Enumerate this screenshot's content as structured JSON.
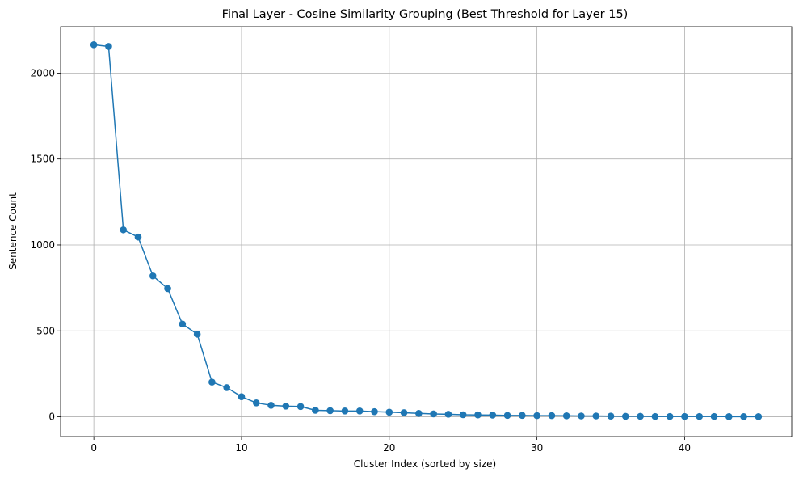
{
  "chart_data": {
    "type": "line",
    "title": "Final Layer - Cosine Similarity Grouping (Best Threshold for Layer 15)",
    "xlabel": "Cluster Index (sorted by size)",
    "ylabel": "Sentence Count",
    "xlim": [
      -2.25,
      47.25
    ],
    "ylim": [
      -115,
      2270
    ],
    "xticks": [
      0,
      10,
      20,
      30,
      40
    ],
    "yticks": [
      0,
      500,
      1000,
      1500,
      2000
    ],
    "grid": true,
    "series_color": "#1f77b4",
    "x": [
      0,
      1,
      2,
      3,
      4,
      5,
      6,
      7,
      8,
      9,
      10,
      11,
      12,
      13,
      14,
      15,
      16,
      17,
      18,
      19,
      20,
      21,
      22,
      23,
      24,
      25,
      26,
      27,
      28,
      29,
      30,
      31,
      32,
      33,
      34,
      35,
      36,
      37,
      38,
      39,
      40,
      41,
      42,
      43,
      44,
      45
    ],
    "y": [
      2165,
      2155,
      1088,
      1046,
      820,
      746,
      540,
      481,
      202,
      170,
      117,
      81,
      67,
      62,
      60,
      38,
      36,
      34,
      34,
      30,
      27,
      24,
      20,
      17,
      15,
      12,
      11,
      10,
      8,
      8,
      7,
      7,
      6,
      5,
      5,
      4,
      3,
      3,
      2,
      2,
      2,
      2,
      2,
      1,
      1,
      1
    ]
  }
}
